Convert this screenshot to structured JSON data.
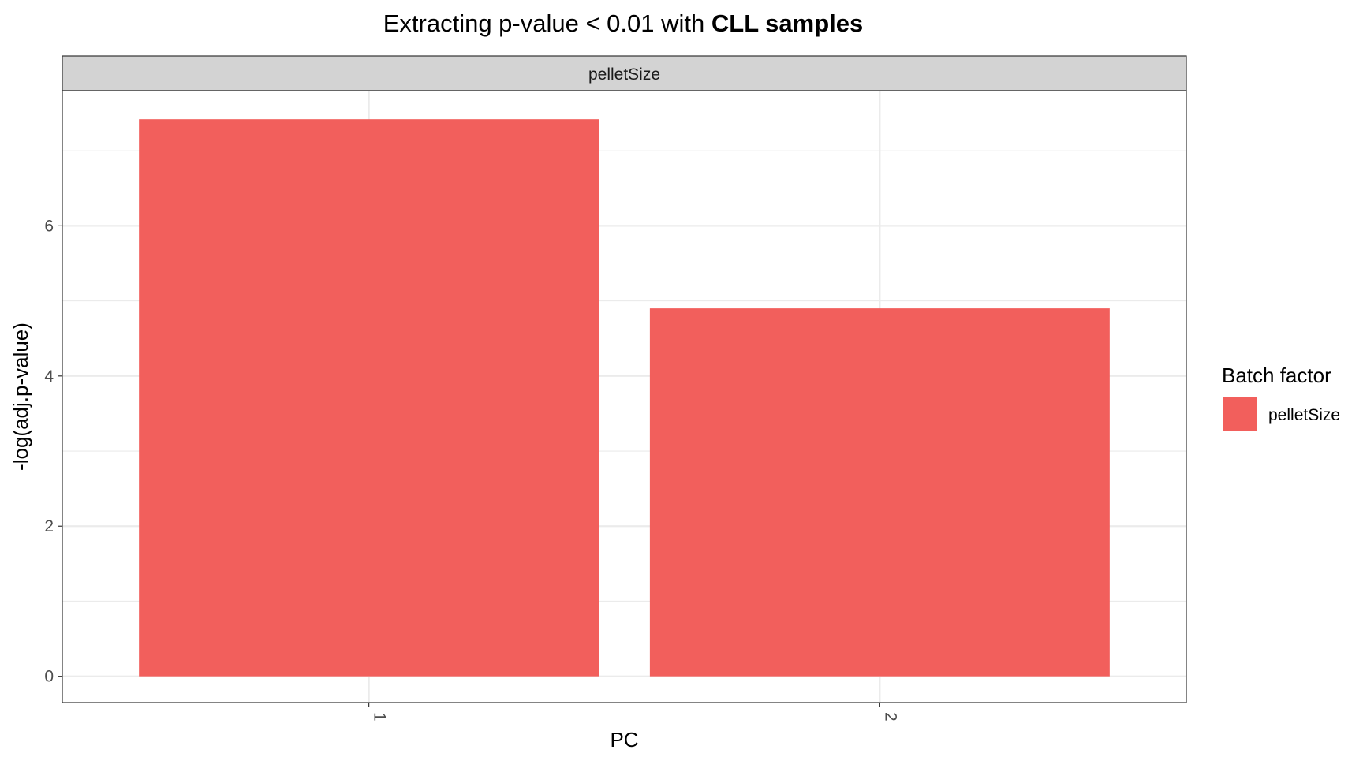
{
  "chart_data": {
    "type": "bar",
    "title_plain": "Extracting p-value < 0.01 with ",
    "title_bold": "CLL samples",
    "facet_label": "pelletSize",
    "xlabel": "PC",
    "ylabel": "-log(adj.p-value)",
    "categories": [
      "1",
      "2"
    ],
    "series": [
      {
        "name": "pelletSize",
        "color": "#F25F5C",
        "values": [
          7.42,
          4.9
        ]
      }
    ],
    "ylim": [
      -0.35,
      7.8
    ],
    "yticks": [
      0,
      2,
      4,
      6
    ],
    "y_minor_ticks": [
      1,
      3,
      5,
      7
    ],
    "grid": true,
    "legend": {
      "title": "Batch factor",
      "position": "right",
      "items": [
        {
          "label": "pelletSize",
          "color": "#F25F5C"
        }
      ]
    }
  }
}
